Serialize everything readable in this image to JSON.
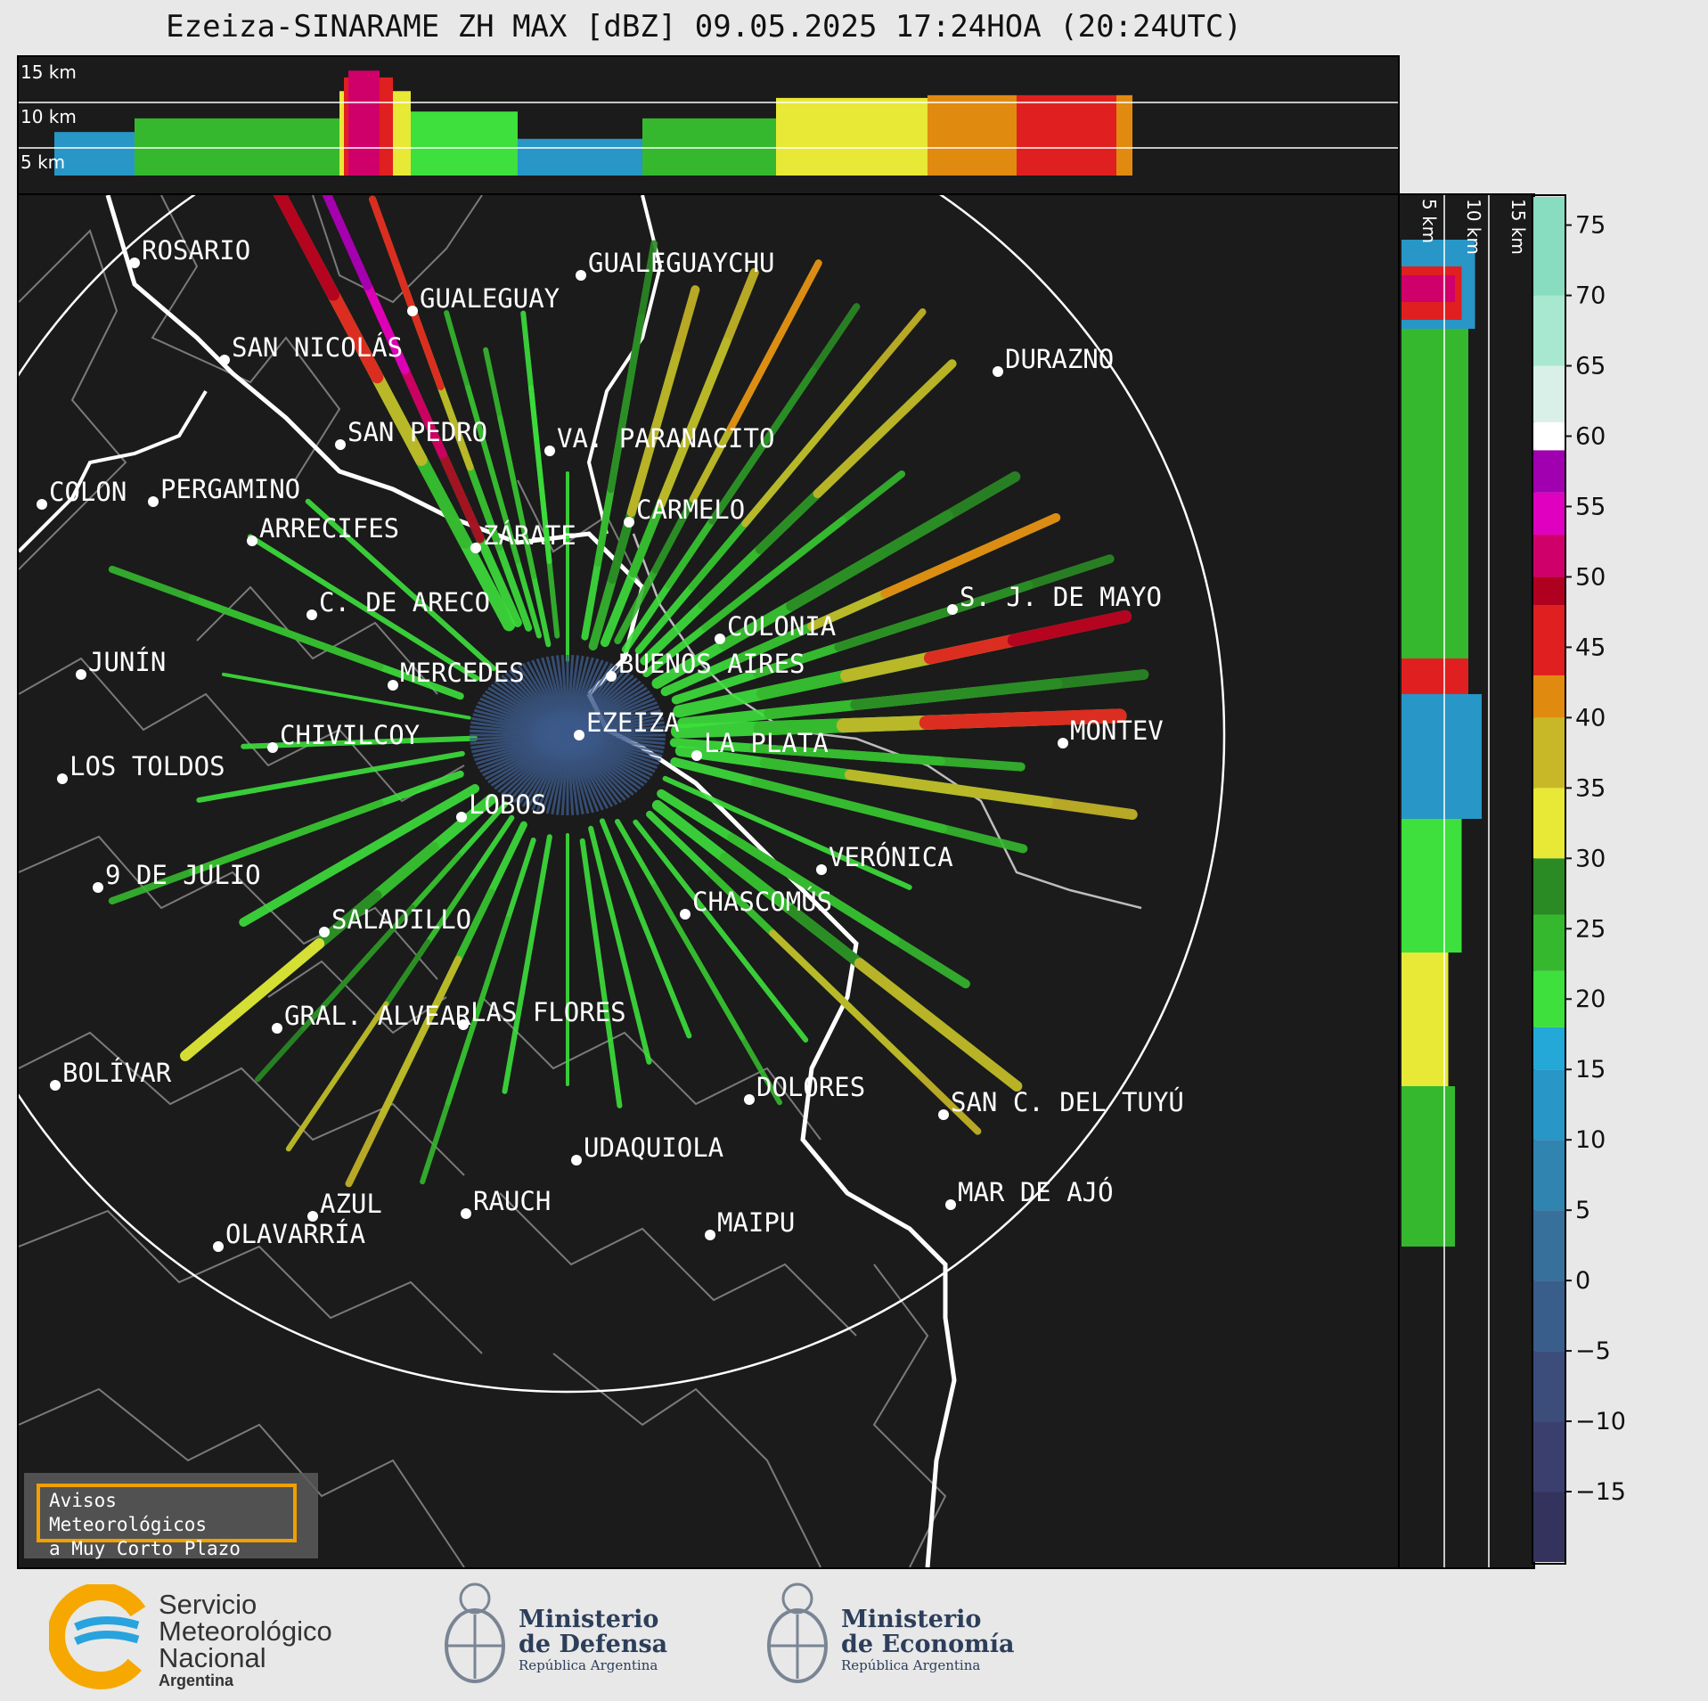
{
  "title": "Ezeiza-SINARAME ZH MAX [dBZ] 09.05.2025 17:24HOA (20:24UTC)",
  "top_panel": {
    "km_labels": [
      "15 km",
      "10 km",
      "5 km"
    ]
  },
  "side_panel": {
    "km_labels": [
      "5 km",
      "10 km",
      "15 km"
    ]
  },
  "colorbar": {
    "ticks": [
      "75",
      "70",
      "65",
      "60",
      "55",
      "50",
      "45",
      "40",
      "35",
      "30",
      "25",
      "20",
      "15",
      "10",
      "5",
      "0",
      "−5",
      "−10",
      "−15"
    ],
    "range": [
      -20,
      77
    ],
    "stops": [
      {
        "from": -20,
        "color": "#33335e"
      },
      {
        "from": -15,
        "color": "#3a3f6e"
      },
      {
        "from": -10,
        "color": "#3c4d7c"
      },
      {
        "from": -5,
        "color": "#3a5e8c"
      },
      {
        "from": 0,
        "color": "#37709a"
      },
      {
        "from": 5,
        "color": "#2f84b0"
      },
      {
        "from": 10,
        "color": "#2896c6"
      },
      {
        "from": 15,
        "color": "#23a8d8"
      },
      {
        "from": 18,
        "color": "#3de03c"
      },
      {
        "from": 22,
        "color": "#35b82e"
      },
      {
        "from": 26,
        "color": "#2a8a24"
      },
      {
        "from": 30,
        "color": "#e8e836"
      },
      {
        "from": 35,
        "color": "#c8b828"
      },
      {
        "from": 40,
        "color": "#e08a10"
      },
      {
        "from": 43,
        "color": "#e02020"
      },
      {
        "from": 48,
        "color": "#b00020"
      },
      {
        "from": 50,
        "color": "#d0006a"
      },
      {
        "from": 53,
        "color": "#e000c0"
      },
      {
        "from": 56,
        "color": "#a000b0"
      },
      {
        "from": 59,
        "color": "#ffffff"
      },
      {
        "from": 61,
        "color": "#d8f0e8"
      },
      {
        "from": 65,
        "color": "#a8e8d0"
      },
      {
        "from": 70,
        "color": "#88dcc0"
      }
    ]
  },
  "cities": [
    {
      "name": "ROSARIO"
    },
    {
      "name": "GUALEGUAYCHU"
    },
    {
      "name": "GUALEGUAY"
    },
    {
      "name": "SAN NICOLÁS"
    },
    {
      "name": "DURAZNO"
    },
    {
      "name": "SAN PEDRO"
    },
    {
      "name": "VA. PARANACITO"
    },
    {
      "name": "COLON"
    },
    {
      "name": "PERGAMINO"
    },
    {
      "name": "CARMELO"
    },
    {
      "name": "ARRECIFES"
    },
    {
      "name": "ZÁRATE"
    },
    {
      "name": "S. J. DE MAYO"
    },
    {
      "name": "C. DE ARECO"
    },
    {
      "name": "COLONIA"
    },
    {
      "name": "JUNÍN"
    },
    {
      "name": "BUENOS AIRES"
    },
    {
      "name": "MERCEDES"
    },
    {
      "name": "EZEIZA"
    },
    {
      "name": "MONTEV"
    },
    {
      "name": "CHIVILCOY"
    },
    {
      "name": "LA PLATA"
    },
    {
      "name": "LOS TOLDOS"
    },
    {
      "name": "LOBOS"
    },
    {
      "name": "VERÓNICA"
    },
    {
      "name": "9 DE JULIO"
    },
    {
      "name": "CHASCOMÚS"
    },
    {
      "name": "SALADILLO"
    },
    {
      "name": "GRAL. ALVEAR"
    },
    {
      "name": "LAS FLORES"
    },
    {
      "name": "BOLÍVAR"
    },
    {
      "name": "DOLORES"
    },
    {
      "name": "SAN C. DEL TUYÚ"
    },
    {
      "name": "UDAQUIOLA"
    },
    {
      "name": "MAR DE AJÓ"
    },
    {
      "name": "AZUL"
    },
    {
      "name": "RAUCH"
    },
    {
      "name": "OLAVARRÍA"
    },
    {
      "name": "MAIPU"
    }
  ],
  "warning_box": {
    "line1": "Avisos Meteorológicos",
    "line2": "a Muy Corto Plazo"
  },
  "footer": {
    "smn": {
      "line1": "Servicio",
      "line2": "Meteorológico",
      "line3": "Nacional",
      "line4": "Argentina"
    },
    "defensa": {
      "line1": "Ministerio",
      "line2": "de Defensa",
      "sub": "República Argentina"
    },
    "economia": {
      "line1": "Ministerio",
      "line2": "de Economía",
      "sub": "República Argentina"
    }
  }
}
